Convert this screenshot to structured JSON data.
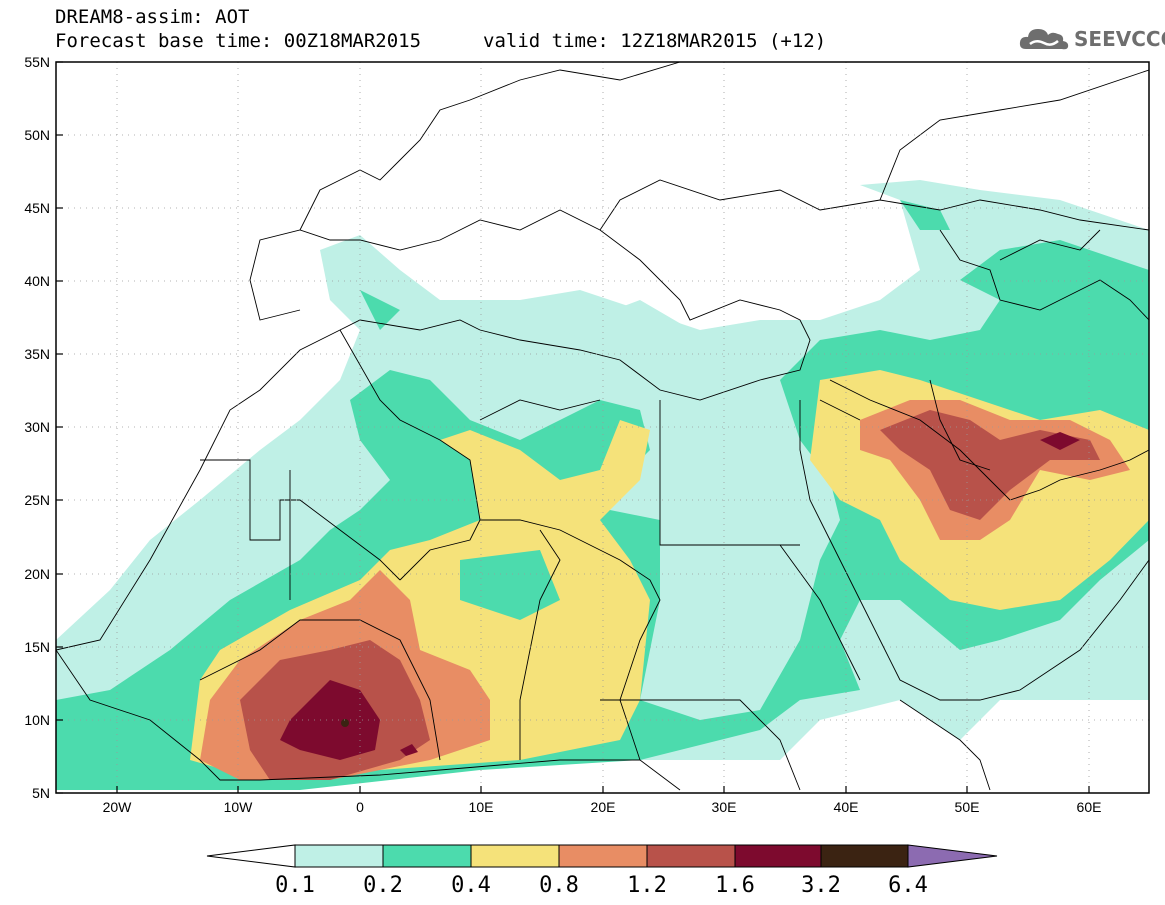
{
  "header": {
    "title_line1": "DREAM8-assim: AOT",
    "title_line2": "Forecast base time: 00Z18MAR2015",
    "valid_time": "valid time: 12Z18MAR2015 (+12)",
    "logo_text": "SEEVCCC",
    "logo_icon": "cloud-icon"
  },
  "map": {
    "region": "North Africa, Mediterranean and Middle East",
    "lon_range": [
      -25,
      65
    ],
    "lat_range": [
      5,
      55
    ],
    "lon_ticks": [
      "20W",
      "10W",
      "0",
      "10E",
      "20E",
      "30E",
      "40E",
      "50E",
      "60E"
    ],
    "lat_ticks": [
      "55N",
      "50N",
      "45N",
      "40N",
      "35N",
      "30N",
      "25N",
      "20N",
      "15N",
      "10N",
      "5N"
    ],
    "grid": "dotted"
  },
  "colorbar": {
    "labels": [
      "0.1",
      "0.2",
      "0.4",
      "0.8",
      "1.2",
      "1.6",
      "3.2",
      "6.4"
    ],
    "colors": [
      "#ffffff",
      "#bff0e6",
      "#4cdbad",
      "#f5e27a",
      "#e88d64",
      "#b8524a",
      "#7d0a2e",
      "#3b2312",
      "#8c6bb1"
    ]
  }
}
